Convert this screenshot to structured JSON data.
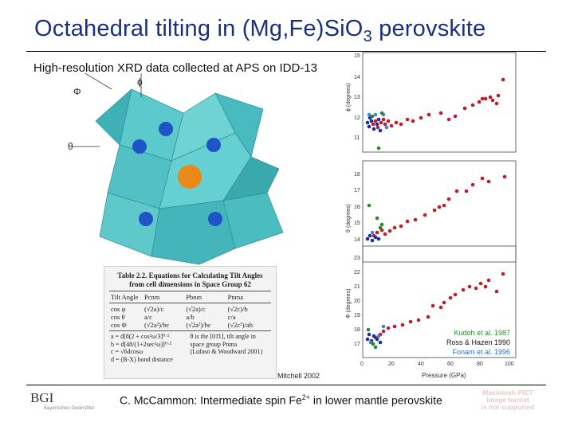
{
  "title": {
    "main": "Octahedral tilting in (Mg,Fe)Si",
    "o_sub": "O",
    "three": "3",
    "end": " perovskite"
  },
  "subtitle": "High-resolution XRD data collected at APS on IDD-13",
  "crystal": {
    "phi": "Φ",
    "phi_small": "ϕ",
    "theta": "θ"
  },
  "table": {
    "heading_1": "Table 2.2. Equations for Calculating Tilt Angles",
    "heading_2": "from cell dimensions in Space Group 62",
    "columns": [
      "Tilt Angle",
      "Pcnm",
      "Pbnm",
      "Pnma"
    ],
    "rows": [
      [
        "cos φ",
        "(√2a)/c",
        "(√2a)/c",
        "(√2c)/b"
      ],
      [
        "cos θ",
        "a/c",
        "a/b",
        "c/a"
      ],
      [
        "cos Φ",
        "(√2a²)/bc",
        "(√2a²)/bc",
        "(√2c²)/ab"
      ]
    ],
    "notes": [
      [
        "a = d[8(2 + cos²ω/3]⁰·⁵",
        "θ is the [01̄1], tilt angle in"
      ],
      [
        "b = d[48/(1+2sec²ω)]⁰·⁵",
        "space group Pnma"
      ],
      [
        "c = √6dcosω",
        "(Lufaso & Woodward 2001)"
      ],
      [
        "d = (B-X) bond distance",
        ""
      ]
    ]
  },
  "credit": "Mitchell 2002",
  "plots": {
    "panels": [
      {
        "ylabel": "ϕ (degrees)",
        "ticks": [
          "15",
          "14",
          "13",
          "12",
          "11"
        ]
      },
      {
        "ylabel": "θ (degrees)",
        "ticks": [
          "18",
          "17",
          "16",
          "15",
          "14"
        ]
      },
      {
        "ylabel": "Φ (degrees)",
        "ticks": [
          "23",
          "22",
          "21",
          "20",
          "19",
          "18",
          "17"
        ]
      }
    ],
    "xticks": [
      "0",
      "20",
      "40",
      "60",
      "80",
      "100"
    ],
    "xlabel": "Pressure (GPa)"
  },
  "legend": [
    {
      "label": "Kudoh et al. 1987",
      "color": "#2a8a2a"
    },
    {
      "label": "Ross & Hazen 1990",
      "color": "#111111"
    },
    {
      "label": "Fonam et al. 1996",
      "color": "#2a72c8"
    }
  ],
  "footer": {
    "pre": "C. McCammon: Intermediate spin Fe",
    "sup": "2+",
    "post": " in lower mantle perovskite"
  },
  "logo": {
    "text": "BGI",
    "sub": "Bayerisches Geoinstitut"
  },
  "warning": {
    "line1": "Macintosh PICT",
    "line2": "image format",
    "line3": "is not supported"
  },
  "colors": {
    "title": "#1b2f80",
    "octahedra": "#4fc4c9",
    "red_points": "#c21d26",
    "blue_points": "#1a2fa0"
  }
}
